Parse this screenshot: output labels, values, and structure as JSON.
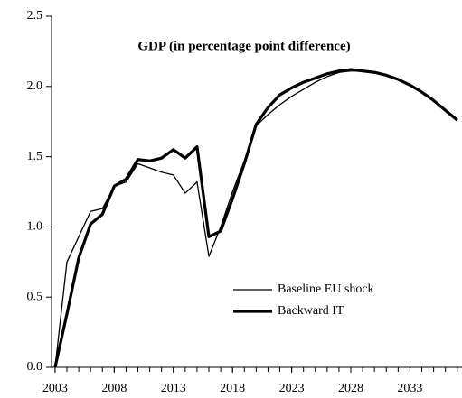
{
  "chart_data": {
    "type": "line",
    "title": "GDP (in percentage point difference)",
    "x": [
      2003,
      2004,
      2005,
      2006,
      2007,
      2008,
      2009,
      2010,
      2011,
      2012,
      2013,
      2014,
      2015,
      2016,
      2017,
      2018,
      2019,
      2020,
      2021,
      2022,
      2023,
      2024,
      2025,
      2026,
      2027,
      2028,
      2029,
      2030,
      2031,
      2032,
      2033,
      2034,
      2035,
      2036,
      2037
    ],
    "series": [
      {
        "name": "Baseline EU shock",
        "color": "#000000",
        "width": 1.3,
        "values": [
          0,
          0.75,
          0.93,
          1.11,
          1.13,
          1.29,
          1.32,
          1.45,
          1.42,
          1.39,
          1.37,
          1.24,
          1.32,
          0.79,
          1.0,
          1.25,
          1.47,
          1.72,
          1.8,
          1.87,
          1.93,
          1.98,
          2.03,
          2.07,
          2.1,
          2.11,
          2.11,
          2.1,
          2.08,
          2.05,
          2.01,
          1.96,
          1.9,
          1.83,
          1.76
        ]
      },
      {
        "name": "Backward IT",
        "color": "#000000",
        "width": 3.2,
        "values": [
          0,
          0.38,
          0.78,
          1.02,
          1.09,
          1.29,
          1.34,
          1.48,
          1.47,
          1.49,
          1.55,
          1.49,
          1.57,
          0.93,
          0.97,
          1.2,
          1.45,
          1.73,
          1.85,
          1.94,
          1.99,
          2.03,
          2.06,
          2.09,
          2.11,
          2.12,
          2.11,
          2.1,
          2.08,
          2.05,
          2.01,
          1.96,
          1.9,
          1.83,
          1.76
        ]
      }
    ],
    "xlim": [
      2002.7,
      2037.4
    ],
    "xticks": [
      2003,
      2008,
      2013,
      2018,
      2023,
      2028,
      2033
    ],
    "ylim": [
      0,
      2.5
    ],
    "yticks": [
      {
        "value": 0,
        "label": "0.0"
      },
      {
        "value": 0.5,
        "label": "0.5"
      },
      {
        "value": 1,
        "label": "1.0"
      },
      {
        "value": 1.5,
        "label": "1.5"
      },
      {
        "value": 2,
        "label": "2.0"
      },
      {
        "value": 2.5,
        "label": "2.5"
      }
    ],
    "grid": false
  }
}
